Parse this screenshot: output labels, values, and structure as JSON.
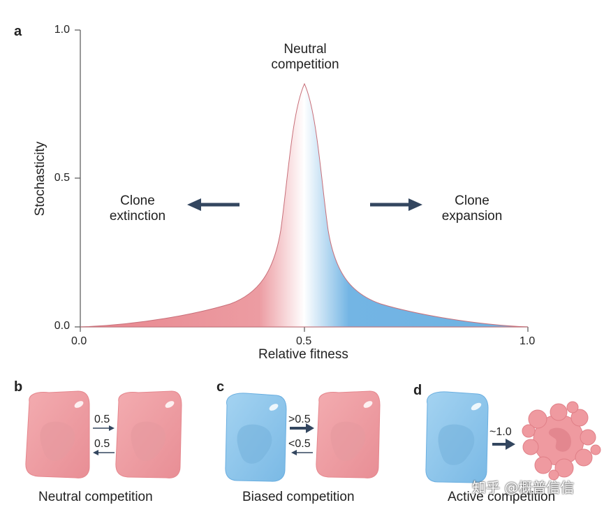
{
  "panels": {
    "a": "a",
    "b": "b",
    "c": "c",
    "d": "d"
  },
  "plot": {
    "ylabel": "Stochasticity",
    "xlabel": "Relative fitness",
    "y_ticks": [
      "1.0",
      "0.5",
      "0.0"
    ],
    "x_ticks": [
      "0.0",
      "0.5",
      "1.0"
    ],
    "peak_label": [
      "Neutral",
      "competition"
    ],
    "left_label": [
      "Clone",
      "extinction"
    ],
    "right_label": [
      "Clone",
      "expansion"
    ]
  },
  "panel_b": {
    "rate_top": "0.5",
    "rate_bottom": "0.5",
    "caption": "Neutral competition"
  },
  "panel_c": {
    "rate_top": ">0.5",
    "rate_bottom": "<0.5",
    "caption": "Biased competition"
  },
  "panel_d": {
    "rate": "~1.0",
    "caption": "Active competition"
  },
  "watermark": "知乎 @概普信信",
  "colors": {
    "red_cell": "#ee9ea3",
    "blue_cell": "#8cc6ea",
    "arrow": "#33465f",
    "curve_red": "#e9868d",
    "curve_blue": "#6fb4e3"
  }
}
